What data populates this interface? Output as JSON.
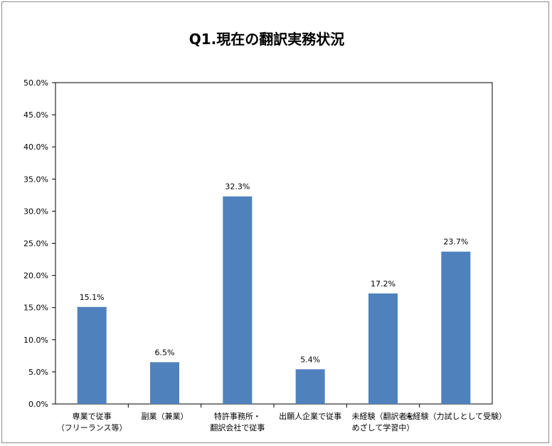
{
  "chart_data": {
    "type": "bar",
    "title": "Q1.現在の翻訳実務状況",
    "xlabel": "",
    "ylabel": "",
    "categories": [
      [
        "専業で従事",
        "（フリーランス等）"
      ],
      [
        "副業（兼業）"
      ],
      [
        "特許事務所・",
        "翻訳会社で従事"
      ],
      [
        "出願人企業で従事"
      ],
      [
        "未経験（翻訳者を",
        "めざして学習中）"
      ],
      [
        "未経験（力試しとして受験）"
      ]
    ],
    "values": [
      15.1,
      6.5,
      32.3,
      5.4,
      17.2,
      23.7
    ],
    "data_labels": [
      "15.1%",
      "6.5%",
      "32.3%",
      "5.4%",
      "17.2%",
      "23.7%"
    ],
    "ylim": [
      0,
      50
    ],
    "yticks": [
      0,
      5,
      10,
      15,
      20,
      25,
      30,
      35,
      40,
      45,
      50
    ],
    "ytick_labels": [
      "0.0%",
      "5.0%",
      "10.0%",
      "15.0%",
      "20.0%",
      "25.0%",
      "30.0%",
      "35.0%",
      "40.0%",
      "45.0%",
      "50.0%"
    ],
    "grid": false,
    "legend": "none",
    "bar_color": "#4f81bd",
    "axis_color": "#000000"
  }
}
